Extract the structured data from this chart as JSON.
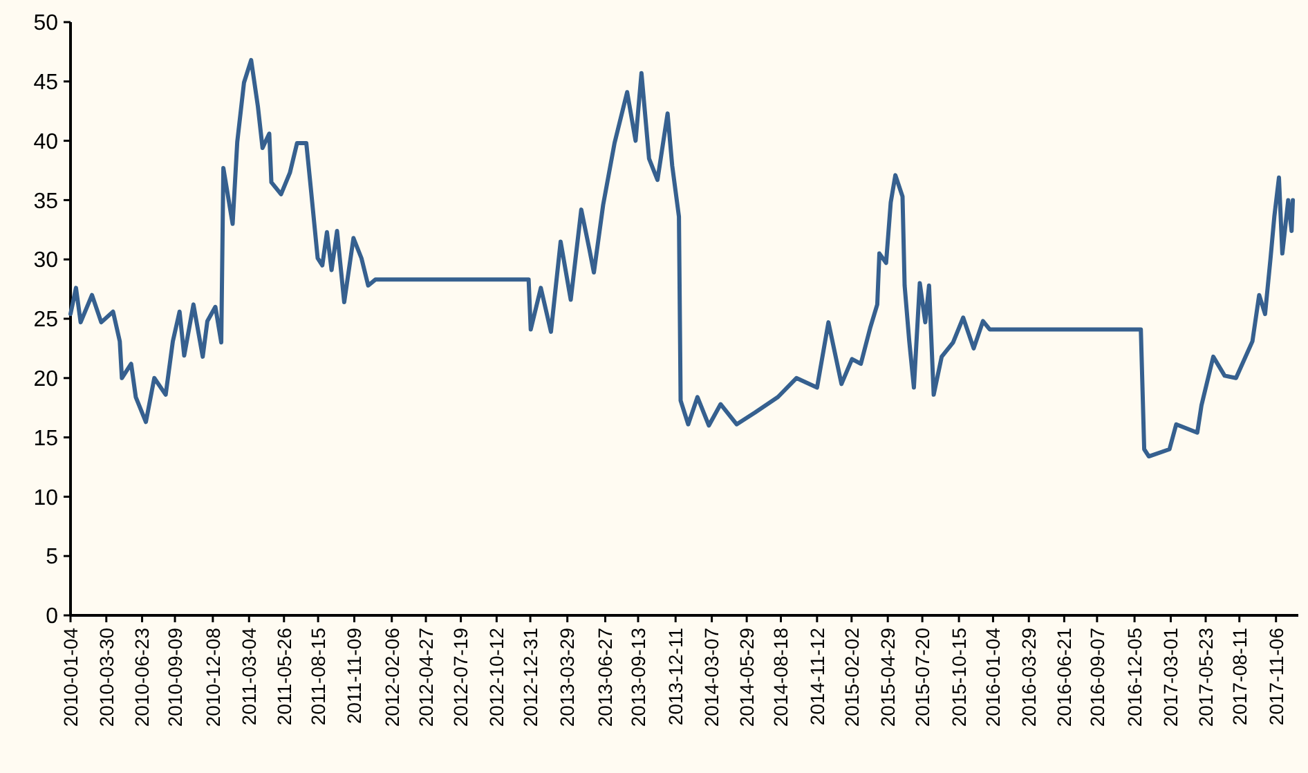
{
  "chart_data": {
    "type": "line",
    "x": [
      "2010-01-04",
      "2010-01-17",
      "2010-01-28",
      "2010-02-24",
      "2010-03-18",
      "2010-04-15",
      "2010-05-01",
      "2010-05-06",
      "2010-05-28",
      "2010-06-08",
      "2010-07-02",
      "2010-07-22",
      "2010-08-18",
      "2010-09-04",
      "2010-09-20",
      "2010-10-01",
      "2010-10-23",
      "2010-11-14",
      "2010-11-25",
      "2010-12-14",
      "2010-12-28",
      "2011-01-02",
      "2011-01-24",
      "2011-02-04",
      "2011-02-20",
      "2011-03-09",
      "2011-03-25",
      "2011-04-05",
      "2011-04-21",
      "2011-04-26",
      "2011-05-19",
      "2011-06-09",
      "2011-06-26",
      "2011-07-18",
      "2011-07-29",
      "2011-08-14",
      "2011-08-25",
      "2011-09-05",
      "2011-09-16",
      "2011-09-29",
      "2011-10-16",
      "2011-11-07",
      "2011-11-26",
      "2011-12-12",
      "2011-12-29",
      "2012-12-27",
      "2013-01-01",
      "2013-01-25",
      "2013-02-18",
      "2013-03-13",
      "2013-04-06",
      "2013-05-01",
      "2013-05-20",
      "2013-05-31",
      "2013-06-22",
      "2013-07-19",
      "2013-08-18",
      "2013-09-07",
      "2013-09-21",
      "2013-10-09",
      "2013-10-29",
      "2013-11-22",
      "2013-12-03",
      "2013-12-19",
      "2013-12-23",
      "2014-01-10",
      "2014-02-01",
      "2014-02-28",
      "2014-03-28",
      "2014-05-05",
      "2014-06-18",
      "2014-08-11",
      "2014-09-24",
      "2014-11-12",
      "2014-12-09",
      "2015-01-09",
      "2015-02-03",
      "2015-02-24",
      "2015-03-18",
      "2015-04-04",
      "2015-04-09",
      "2015-04-25",
      "2015-05-06",
      "2015-05-17",
      "2015-06-03",
      "2015-06-08",
      "2015-06-19",
      "2015-06-30",
      "2015-07-14",
      "2015-07-27",
      "2015-08-05",
      "2015-08-16",
      "2015-09-04",
      "2015-10-01",
      "2015-10-25",
      "2015-11-19",
      "2015-12-11",
      "2015-12-27",
      "2016-12-20",
      "2016-12-28",
      "2017-01-08",
      "2017-02-26",
      "2017-03-14",
      "2017-05-03",
      "2017-05-13",
      "2017-06-10",
      "2017-07-07",
      "2017-08-03",
      "2017-09-11",
      "2017-09-27",
      "2017-10-11",
      "2017-10-24",
      "2017-11-02",
      "2017-11-13",
      "2017-11-21",
      "2017-12-05",
      "2017-12-13",
      "2017-12-16"
    ],
    "series": [
      {
        "color": "#36608f",
        "values": [
          25.4,
          27.6,
          24.7,
          27.0,
          24.7,
          25.6,
          23.1,
          20.0,
          21.2,
          18.4,
          16.3,
          20.0,
          18.6,
          23.1,
          25.6,
          21.9,
          26.2,
          21.8,
          24.8,
          26.0,
          23.0,
          37.7,
          33.0,
          39.9,
          44.9,
          46.8,
          42.9,
          39.4,
          40.6,
          36.5,
          35.5,
          37.3,
          39.8,
          39.8,
          35.9,
          30.1,
          29.5,
          32.3,
          29.1,
          32.4,
          26.4,
          31.8,
          30.1,
          27.8,
          28.3,
          28.3,
          24.1,
          27.6,
          23.9,
          31.5,
          26.6,
          34.2,
          30.9,
          28.9,
          34.6,
          39.8,
          44.1,
          40.0,
          45.7,
          38.5,
          36.7,
          42.3,
          37.9,
          33.6,
          18.1,
          16.1,
          18.4,
          16.0,
          17.8,
          16.1,
          17.1,
          18.4,
          20.0,
          19.2,
          24.7,
          19.5,
          21.6,
          21.2,
          24.2,
          26.2,
          30.5,
          29.7,
          34.8,
          37.1,
          35.3,
          27.8,
          23.1,
          19.2,
          28.0,
          24.7,
          27.8,
          18.6,
          21.8,
          23.0,
          25.1,
          22.5,
          24.8,
          24.1,
          24.1,
          14.0,
          13.4,
          14.0,
          16.1,
          15.4,
          17.7,
          21.8,
          20.2,
          20.0,
          23.1,
          27.0,
          25.4,
          30.1,
          33.6,
          36.9,
          30.5,
          35.0,
          32.4,
          35.0
        ]
      }
    ],
    "xlim": [
      "2010-01-04",
      "2017-12-29"
    ],
    "xticks": [
      "2010-01-04",
      "2010-03-30",
      "2010-06-23",
      "2010-09-09",
      "2010-12-08",
      "2011-03-04",
      "2011-05-26",
      "2011-08-15",
      "2011-11-09",
      "2012-02-06",
      "2012-04-27",
      "2012-07-19",
      "2012-10-12",
      "2012-12-31",
      "2013-03-29",
      "2013-06-27",
      "2013-09-13",
      "2013-12-11",
      "2014-03-07",
      "2014-05-29",
      "2014-08-18",
      "2014-11-12",
      "2015-02-02",
      "2015-04-29",
      "2015-07-20",
      "2015-10-15",
      "2016-01-04",
      "2016-03-29",
      "2016-06-21",
      "2016-09-07",
      "2016-12-05",
      "2017-03-01",
      "2017-05-23",
      "2017-08-11",
      "2017-11-06"
    ],
    "ylim": [
      0,
      50
    ],
    "yticks": [
      0,
      5,
      10,
      15,
      20,
      25,
      30,
      35,
      40,
      45,
      50
    ],
    "grid": false,
    "marker": "none",
    "line_style": "solid"
  }
}
